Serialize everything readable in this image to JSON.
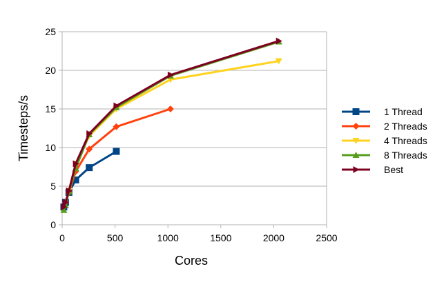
{
  "chart_data": {
    "type": "line",
    "title": "",
    "xlabel": "Cores",
    "ylabel": "Timesteps/s",
    "xlim": [
      0,
      2500
    ],
    "ylim": [
      0,
      25
    ],
    "x_ticks": [
      0,
      500,
      1000,
      1500,
      2000,
      2500
    ],
    "y_ticks": [
      0,
      5,
      10,
      15,
      20,
      25
    ],
    "grid": "horizontal",
    "legend_position": "right",
    "series": [
      {
        "name": "1 Thread",
        "color": "#004586",
        "marker": "square",
        "points": [
          [
            16,
            2.3
          ],
          [
            32,
            2.9
          ],
          [
            64,
            4.2
          ],
          [
            128,
            5.8
          ],
          [
            256,
            7.4
          ],
          [
            512,
            9.5
          ]
        ]
      },
      {
        "name": "2 Threads",
        "color": "#ff420e",
        "marker": "diamond",
        "points": [
          [
            32,
            2.9
          ],
          [
            64,
            4.2
          ],
          [
            128,
            6.9
          ],
          [
            256,
            9.8
          ],
          [
            512,
            12.7
          ],
          [
            1024,
            15.0
          ]
        ]
      },
      {
        "name": "4 Threads",
        "color": "#ffd320",
        "marker": "triangle-down",
        "points": [
          [
            64,
            4.4
          ],
          [
            128,
            7.9
          ],
          [
            256,
            11.5
          ],
          [
            512,
            15.0
          ],
          [
            1024,
            18.8
          ],
          [
            2048,
            21.2
          ]
        ]
      },
      {
        "name": "8 Threads",
        "color": "#579d1c",
        "marker": "triangle-up",
        "points": [
          [
            16,
            1.9
          ],
          [
            32,
            2.5
          ],
          [
            64,
            4.3
          ],
          [
            128,
            7.3
          ],
          [
            256,
            11.7
          ],
          [
            512,
            15.2
          ],
          [
            1024,
            19.3
          ],
          [
            2048,
            23.7
          ]
        ]
      },
      {
        "name": "Best",
        "color": "#7e0021",
        "marker": "triangle-right",
        "points": [
          [
            16,
            2.3
          ],
          [
            32,
            2.9
          ],
          [
            64,
            4.4
          ],
          [
            128,
            7.9
          ],
          [
            256,
            11.8
          ],
          [
            512,
            15.4
          ],
          [
            1024,
            19.4
          ],
          [
            2048,
            23.8
          ]
        ]
      }
    ]
  }
}
